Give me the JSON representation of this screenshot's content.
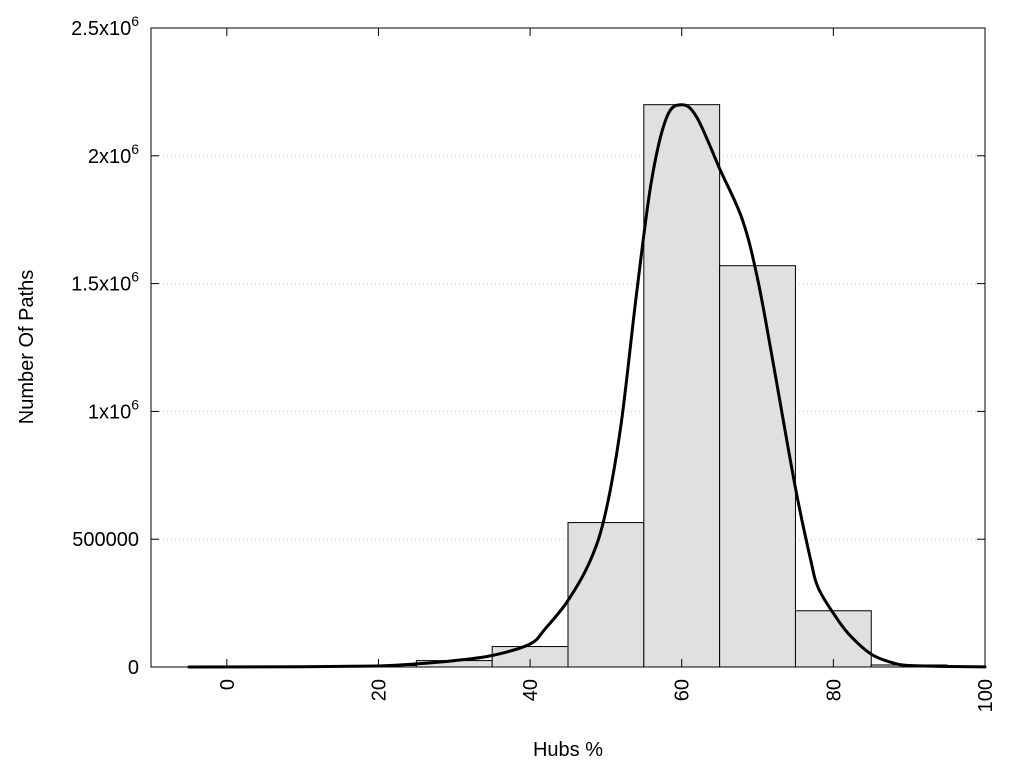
{
  "chart_data": {
    "type": "bar",
    "title": "",
    "xlabel": "Hubs %",
    "ylabel": "Number Of Paths",
    "xlim": [
      -10,
      100
    ],
    "ylim": [
      0,
      2500000
    ],
    "grid": "horizontal dotted",
    "legend": "none",
    "bar_width": 10,
    "bar_color": "#e0e0e0",
    "x_ticks": [
      {
        "value": 0,
        "label": "0"
      },
      {
        "value": 20,
        "label": "20"
      },
      {
        "value": 40,
        "label": "40"
      },
      {
        "value": 60,
        "label": "60"
      },
      {
        "value": 80,
        "label": "80"
      },
      {
        "value": 100,
        "label": "100"
      }
    ],
    "y_ticks": [
      {
        "value": 0,
        "mantissa": "0",
        "exponent": ""
      },
      {
        "value": 500000,
        "mantissa": "500000",
        "exponent": ""
      },
      {
        "value": 1000000,
        "mantissa": "1x10",
        "exponent": "6"
      },
      {
        "value": 1500000,
        "mantissa": "1.5x10",
        "exponent": "6"
      },
      {
        "value": 2000000,
        "mantissa": "2x10",
        "exponent": "6"
      },
      {
        "value": 2500000,
        "mantissa": "2.5x10",
        "exponent": "6"
      }
    ],
    "bars": [
      {
        "x": 0,
        "value": 2000
      },
      {
        "x": 10,
        "value": 3000
      },
      {
        "x": 20,
        "value": 6000
      },
      {
        "x": 30,
        "value": 25000
      },
      {
        "x": 40,
        "value": 80000
      },
      {
        "x": 50,
        "value": 565000
      },
      {
        "x": 60,
        "value": 2200000
      },
      {
        "x": 70,
        "value": 1570000
      },
      {
        "x": 80,
        "value": 220000
      },
      {
        "x": 90,
        "value": 8000
      }
    ],
    "curve": {
      "color": "#000000",
      "points": [
        [
          -5,
          0
        ],
        [
          10,
          1000
        ],
        [
          20,
          4000
        ],
        [
          25,
          12000
        ],
        [
          30,
          25000
        ],
        [
          35,
          45000
        ],
        [
          40,
          90000
        ],
        [
          42,
          150000
        ],
        [
          45,
          260000
        ],
        [
          48,
          420000
        ],
        [
          50,
          610000
        ],
        [
          52,
          950000
        ],
        [
          54,
          1450000
        ],
        [
          56,
          1900000
        ],
        [
          58,
          2150000
        ],
        [
          60,
          2200000
        ],
        [
          62,
          2150000
        ],
        [
          65,
          1950000
        ],
        [
          68,
          1750000
        ],
        [
          70,
          1520000
        ],
        [
          72,
          1200000
        ],
        [
          75,
          700000
        ],
        [
          77,
          420000
        ],
        [
          78,
          310000
        ],
        [
          80,
          210000
        ],
        [
          82,
          130000
        ],
        [
          85,
          50000
        ],
        [
          88,
          15000
        ],
        [
          90,
          6000
        ],
        [
          95,
          2000
        ],
        [
          100,
          500
        ]
      ]
    }
  }
}
